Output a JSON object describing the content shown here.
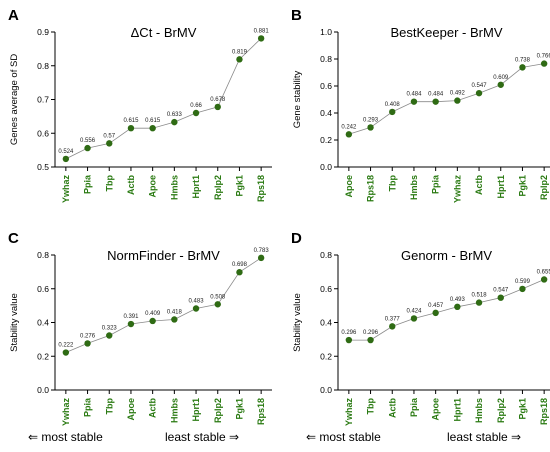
{
  "colors": {
    "point": "#2f6b14",
    "line": "#8a8a8a",
    "category_label": "#2a7a12",
    "axis": "#000000"
  },
  "chart_data": [
    {
      "panel": "A",
      "type": "line",
      "title": "ΔCt - BrMV",
      "ylabel": "Genes average of SD",
      "xlabel": "",
      "ylim": [
        0.5,
        0.9
      ],
      "yticks": [
        "0.5",
        "0.6",
        "0.7",
        "0.8",
        "0.9"
      ],
      "categories": [
        "Ywhaz",
        "Ppia",
        "Tbp",
        "Actb",
        "Apoe",
        "Hmbs",
        "Hprt1",
        "Rplp2",
        "Pgk1",
        "Rps18"
      ],
      "values": [
        0.524,
        0.556,
        0.57,
        0.615,
        0.615,
        0.633,
        0.66,
        0.678,
        0.819,
        0.881
      ],
      "labels": [
        "0.524",
        "0.556",
        "0.57",
        "0.615",
        "0.615",
        "0.633",
        "0.66",
        "0.678",
        "0.819",
        "0.881"
      ]
    },
    {
      "panel": "B",
      "type": "line",
      "title": "BestKeeper - BrMV",
      "ylabel": "Gene stability",
      "xlabel": "",
      "ylim": [
        0.0,
        1.0
      ],
      "yticks": [
        "0.0",
        "0.2",
        "0.4",
        "0.6",
        "0.8",
        "1.0"
      ],
      "categories": [
        "Apoe",
        "Rps18",
        "Tbp",
        "Hmbs",
        "Ppia",
        "Ywhaz",
        "Actb",
        "Hprt1",
        "Pgk1",
        "Rplp2"
      ],
      "values": [
        0.242,
        0.293,
        0.408,
        0.484,
        0.484,
        0.492,
        0.547,
        0.609,
        0.738,
        0.766
      ],
      "labels": [
        "0.242",
        "0.293",
        "0.408",
        "0.484",
        "0.484",
        "0.492",
        "0.547",
        "0.609",
        "0.738",
        "0.766"
      ]
    },
    {
      "panel": "C",
      "type": "line",
      "title": "NormFinder - BrMV",
      "ylabel": "Stability value",
      "xlabel": "",
      "ylim": [
        0.0,
        0.8
      ],
      "yticks": [
        "0.0",
        "0.2",
        "0.4",
        "0.6",
        "0.8"
      ],
      "categories": [
        "Ywhaz",
        "Ppia",
        "Tbp",
        "Apoe",
        "Actb",
        "Hmbs",
        "Hprt1",
        "Rplp2",
        "Pgk1",
        "Rps18"
      ],
      "values": [
        0.222,
        0.276,
        0.323,
        0.391,
        0.409,
        0.418,
        0.483,
        0.508,
        0.698,
        0.783
      ],
      "labels": [
        "0.222",
        "0.276",
        "0.323",
        "0.391",
        "0.409",
        "0.418",
        "0.483",
        "0.508",
        "0.698",
        "0.783"
      ]
    },
    {
      "panel": "D",
      "type": "line",
      "title": "Genorm - BrMV",
      "ylabel": "Stability value",
      "xlabel": "",
      "ylim": [
        0.0,
        0.8
      ],
      "yticks": [
        "0.0",
        "0.2",
        "0.4",
        "0.6",
        "0.8"
      ],
      "categories": [
        "Ywhaz",
        "Tbp",
        "Actb",
        "Ppia",
        "Apoe",
        "Hprt1",
        "Hmbs",
        "Rplp2",
        "Pgk1",
        "Rps18"
      ],
      "values": [
        0.296,
        0.296,
        0.377,
        0.424,
        0.457,
        0.493,
        0.518,
        0.547,
        0.599,
        0.655
      ],
      "labels": [
        "0.296",
        "0.296",
        "0.377",
        "0.424",
        "0.457",
        "0.493",
        "0.518",
        "0.547",
        "0.599",
        "0.655"
      ]
    }
  ],
  "footer": {
    "left": {
      "most": "⇐ most stable",
      "least": "least stable ⇒"
    },
    "right": {
      "most": "⇐ most stable",
      "least": "least stable ⇒"
    }
  }
}
